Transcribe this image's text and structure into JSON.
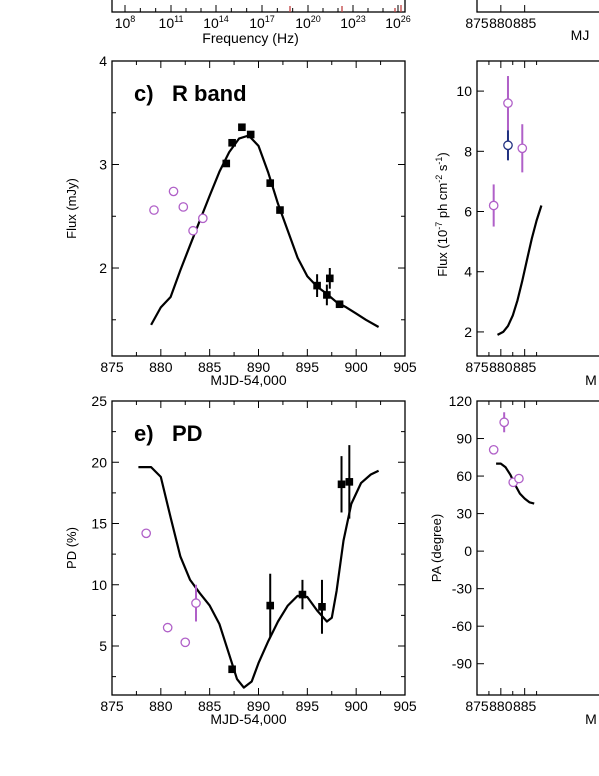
{
  "chart_data": [
    {
      "type": "scatter",
      "panel": "top-left (partial)",
      "title": "",
      "xlabel": "Frequency (Hz)",
      "ylabel": "",
      "xscale": "log",
      "x_ticks": [
        {
          "base": "10",
          "exp": "8"
        },
        {
          "base": "10",
          "exp": "11"
        },
        {
          "base": "10",
          "exp": "14"
        },
        {
          "base": "10",
          "exp": "17"
        },
        {
          "base": "10",
          "exp": "20"
        },
        {
          "base": "10",
          "exp": "23"
        },
        {
          "base": "10",
          "exp": "26"
        }
      ],
      "xlim": [
        100000000.0,
        1e+26
      ]
    },
    {
      "type": "scatter",
      "panel": "top-right (partial)",
      "title": "",
      "xlabel": "MJ",
      "ylabel": "",
      "x_ticks": [
        "875",
        "880",
        "885"
      ],
      "xlim": [
        875,
        905
      ]
    },
    {
      "type": "scatter",
      "panel": "c",
      "title_letter": "c)",
      "title": "R band",
      "xlabel": "MJD-54,000",
      "ylabel": "Flux (mJy)",
      "xlim": [
        875,
        905
      ],
      "ylim": [
        1.15,
        4.0
      ],
      "x_ticks": [
        "875",
        "880",
        "885",
        "890",
        "895",
        "900",
        "905"
      ],
      "y_ticks": [
        "2",
        "3",
        "4"
      ],
      "grid": false,
      "series": [
        {
          "marker": "open-circle",
          "color": "#b060c8",
          "points": [
            {
              "x": 879.3,
              "y": 2.56
            },
            {
              "x": 881.3,
              "y": 2.74
            },
            {
              "x": 882.3,
              "y": 2.59
            },
            {
              "x": 883.3,
              "y": 2.36
            },
            {
              "x": 884.3,
              "y": 2.48
            }
          ]
        },
        {
          "marker": "filled-square",
          "color": "#000000",
          "points": [
            {
              "x": 886.7,
              "y": 3.01,
              "yerr": 0
            },
            {
              "x": 887.3,
              "y": 3.21,
              "yerr": 0
            },
            {
              "x": 888.3,
              "y": 3.36,
              "yerr": 0
            },
            {
              "x": 889.2,
              "y": 3.29,
              "yerr": 0
            },
            {
              "x": 891.2,
              "y": 2.82,
              "yerr": 0
            },
            {
              "x": 892.2,
              "y": 2.56,
              "yerr": 0
            },
            {
              "x": 896.0,
              "y": 1.83,
              "yerr": 0.11
            },
            {
              "x": 897.0,
              "y": 1.74,
              "yerr": 0.1
            },
            {
              "x": 897.3,
              "y": 1.9,
              "yerr": 0.1
            },
            {
              "x": 898.3,
              "y": 1.65,
              "yerr": 0
            }
          ]
        },
        {
          "marker": "line",
          "color": "#000000",
          "points": [
            {
              "x": 879.0,
              "y": 1.45
            },
            {
              "x": 880.0,
              "y": 1.62
            },
            {
              "x": 881.0,
              "y": 1.72
            },
            {
              "x": 882.0,
              "y": 1.98
            },
            {
              "x": 883.0,
              "y": 2.22
            },
            {
              "x": 884.0,
              "y": 2.46
            },
            {
              "x": 885.0,
              "y": 2.7
            },
            {
              "x": 886.0,
              "y": 2.93
            },
            {
              "x": 887.0,
              "y": 3.12
            },
            {
              "x": 888.0,
              "y": 3.25
            },
            {
              "x": 889.0,
              "y": 3.28
            },
            {
              "x": 890.0,
              "y": 3.18
            },
            {
              "x": 891.0,
              "y": 2.92
            },
            {
              "x": 892.0,
              "y": 2.62
            },
            {
              "x": 893.0,
              "y": 2.36
            },
            {
              "x": 894.0,
              "y": 2.1
            },
            {
              "x": 895.0,
              "y": 1.92
            },
            {
              "x": 896.0,
              "y": 1.82
            },
            {
              "x": 897.0,
              "y": 1.75
            },
            {
              "x": 898.0,
              "y": 1.67
            },
            {
              "x": 899.0,
              "y": 1.62
            },
            {
              "x": 900.0,
              "y": 1.56
            },
            {
              "x": 901.0,
              "y": 1.5
            },
            {
              "x": 902.3,
              "y": 1.43
            }
          ]
        }
      ]
    },
    {
      "type": "scatter",
      "panel": "d (partial)",
      "title": "",
      "xlabel": "M",
      "ylabel": "Flux (10⁻⁷ ph cm⁻² s⁻¹)",
      "ylabel_parts": {
        "pre": "Flux (10",
        "sup1": "-7",
        "mid": " ph cm",
        "sup2": "-2",
        "mid2": " s",
        "sup3": "-1",
        "post": ")"
      },
      "xlim": [
        875,
        905
      ],
      "ylim": [
        1.2,
        11.0
      ],
      "x_ticks": [
        "875",
        "880",
        "885"
      ],
      "y_ticks": [
        "2",
        "4",
        "6",
        "8",
        "10"
      ],
      "series": [
        {
          "marker": "open-circle",
          "color": "#b060c8",
          "points": [
            {
              "x": 878.5,
              "y": 6.2,
              "yerr": 0.7
            },
            {
              "x": 881.5,
              "y": 9.6,
              "yerr": 0.9
            },
            {
              "x": 884.5,
              "y": 8.1,
              "yerr": 0.8
            }
          ]
        },
        {
          "marker": "open-circle",
          "color": "#203080",
          "points": [
            {
              "x": 881.5,
              "y": 8.2,
              "yerr": 0.5
            }
          ]
        },
        {
          "marker": "line",
          "color": "#000000",
          "points": [
            {
              "x": 879.3,
              "y": 1.9
            },
            {
              "x": 880.5,
              "y": 2.0
            },
            {
              "x": 881.5,
              "y": 2.2
            },
            {
              "x": 882.5,
              "y": 2.55
            },
            {
              "x": 883.5,
              "y": 3.05
            },
            {
              "x": 884.5,
              "y": 3.7
            },
            {
              "x": 885.5,
              "y": 4.4
            },
            {
              "x": 886.5,
              "y": 5.1
            },
            {
              "x": 887.5,
              "y": 5.7
            },
            {
              "x": 888.5,
              "y": 6.2
            }
          ]
        }
      ]
    },
    {
      "type": "scatter",
      "panel": "e",
      "title_letter": "e)",
      "title": "PD",
      "xlabel": "MJD-54,000",
      "ylabel": "PD (%)",
      "xlim": [
        875,
        905
      ],
      "ylim": [
        1.0,
        25.0
      ],
      "x_ticks": [
        "875",
        "880",
        "885",
        "890",
        "895",
        "900",
        "905"
      ],
      "y_ticks": [
        "5",
        "10",
        "15",
        "20",
        "25"
      ],
      "series": [
        {
          "marker": "open-circle",
          "color": "#b060c8",
          "points": [
            {
              "x": 878.5,
              "y": 14.2,
              "yerr": 0
            },
            {
              "x": 880.7,
              "y": 6.5,
              "yerr": 0
            },
            {
              "x": 882.5,
              "y": 5.3,
              "yerr": 0
            },
            {
              "x": 883.6,
              "y": 8.5,
              "yerr": 1.5
            }
          ]
        },
        {
          "marker": "filled-square",
          "color": "#000000",
          "points": [
            {
              "x": 887.3,
              "y": 3.1,
              "yerr": 0
            },
            {
              "x": 891.2,
              "y": 8.3,
              "yerr": 2.6
            },
            {
              "x": 894.5,
              "y": 9.2,
              "yerr": 1.2
            },
            {
              "x": 896.5,
              "y": 8.2,
              "yerr": 2.2
            },
            {
              "x": 898.5,
              "y": 18.2,
              "yerr": 2.3
            },
            {
              "x": 899.3,
              "y": 18.4,
              "yerr": 3.0
            }
          ]
        },
        {
          "marker": "line",
          "color": "#000000",
          "points": [
            {
              "x": 877.7,
              "y": 19.6
            },
            {
              "x": 879.0,
              "y": 19.6
            },
            {
              "x": 880.0,
              "y": 18.8
            },
            {
              "x": 881.0,
              "y": 15.5
            },
            {
              "x": 882.0,
              "y": 12.3
            },
            {
              "x": 883.0,
              "y": 10.4
            },
            {
              "x": 884.0,
              "y": 9.3
            },
            {
              "x": 885.0,
              "y": 8.3
            },
            {
              "x": 886.0,
              "y": 6.8
            },
            {
              "x": 887.0,
              "y": 4.3
            },
            {
              "x": 887.8,
              "y": 2.3
            },
            {
              "x": 888.5,
              "y": 1.6
            },
            {
              "x": 889.3,
              "y": 2.1
            },
            {
              "x": 890.0,
              "y": 3.6
            },
            {
              "x": 891.0,
              "y": 5.4
            },
            {
              "x": 892.0,
              "y": 7.0
            },
            {
              "x": 893.0,
              "y": 8.3
            },
            {
              "x": 894.0,
              "y": 9.1
            },
            {
              "x": 895.0,
              "y": 9.0
            },
            {
              "x": 896.0,
              "y": 7.9
            },
            {
              "x": 897.0,
              "y": 7.0
            },
            {
              "x": 897.5,
              "y": 7.3
            },
            {
              "x": 898.0,
              "y": 9.5
            },
            {
              "x": 898.7,
              "y": 13.6
            },
            {
              "x": 899.5,
              "y": 16.6
            },
            {
              "x": 900.5,
              "y": 18.3
            },
            {
              "x": 901.5,
              "y": 19.0
            },
            {
              "x": 902.3,
              "y": 19.3
            }
          ]
        }
      ]
    },
    {
      "type": "scatter",
      "panel": "f (partial)",
      "title": "",
      "xlabel": "M",
      "ylabel": "PA (degree)",
      "xlim": [
        875,
        905
      ],
      "ylim": [
        -115,
        120
      ],
      "x_ticks": [
        "875",
        "880",
        "885"
      ],
      "y_ticks": [
        "120",
        "90",
        "60",
        "30",
        "0",
        "-30",
        "-60",
        "-90"
      ],
      "y_tick_values": [
        120,
        90,
        60,
        30,
        0,
        -30,
        -60,
        -90
      ],
      "series": [
        {
          "marker": "open-circle",
          "color": "#b060c8",
          "points": [
            {
              "x": 878.5,
              "y": 81,
              "yerr": 0
            },
            {
              "x": 880.7,
              "y": 103,
              "yerr": 8
            },
            {
              "x": 882.6,
              "y": 55,
              "yerr": 0
            },
            {
              "x": 883.8,
              "y": 58,
              "yerr": 0
            }
          ]
        },
        {
          "marker": "line",
          "color": "#000000",
          "points": [
            {
              "x": 879.0,
              "y": 70
            },
            {
              "x": 880.0,
              "y": 70
            },
            {
              "x": 881.0,
              "y": 67
            },
            {
              "x": 882.0,
              "y": 61
            },
            {
              "x": 883.0,
              "y": 53
            },
            {
              "x": 884.0,
              "y": 46
            },
            {
              "x": 885.0,
              "y": 42
            },
            {
              "x": 886.0,
              "y": 39
            },
            {
              "x": 887.0,
              "y": 38
            }
          ]
        }
      ]
    }
  ]
}
